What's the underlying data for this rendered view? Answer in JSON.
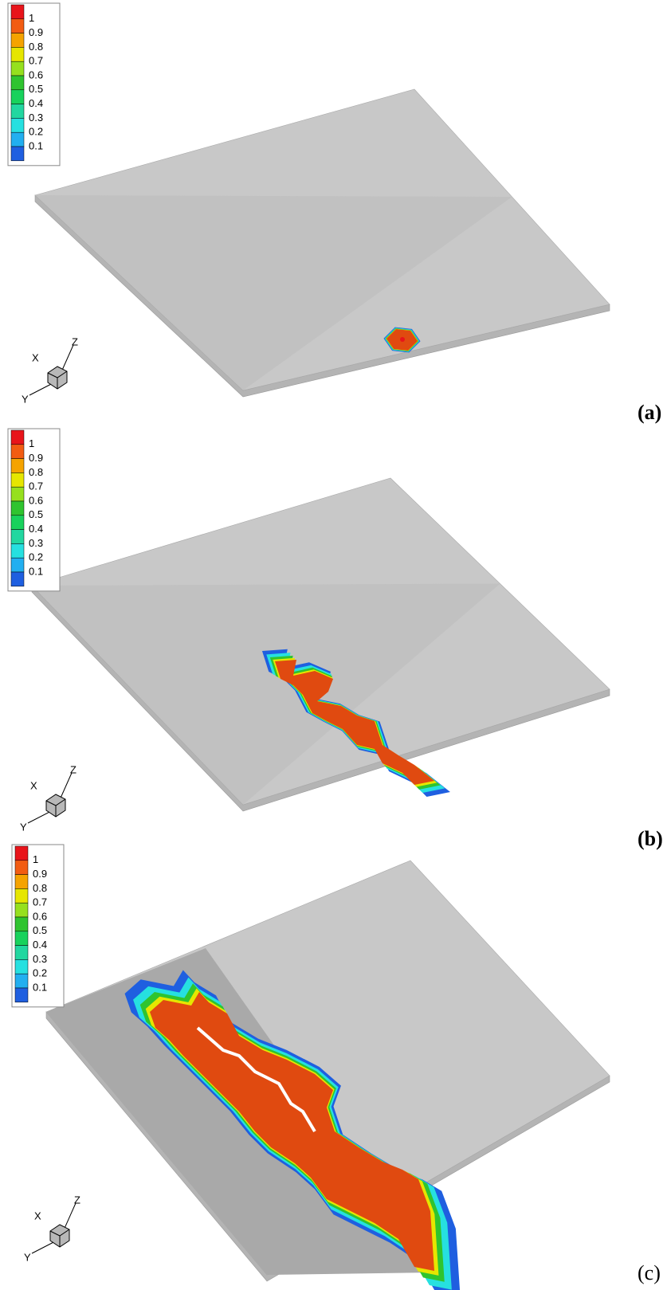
{
  "legend_colors": [
    "#e8141a",
    "#f25c12",
    "#f5a300",
    "#e6e600",
    "#96e01e",
    "#2fc42f",
    "#18d25c",
    "#22d7a0",
    "#26e0e0",
    "#22aff0",
    "#1f5fe0"
  ],
  "panels": [
    {
      "label": "(a)",
      "legend": [
        "1",
        "0.9",
        "0.8",
        "0.7",
        "0.6",
        "0.5",
        "0.4",
        "0.3",
        "0.2",
        "0.1"
      ],
      "axes": {
        "x": "X",
        "y": "Y",
        "z": "Z"
      }
    },
    {
      "label": "(b)",
      "legend": [
        "1",
        "0.9",
        "0.8",
        "0.7",
        "0.6",
        "0.5",
        "0.4",
        "0.3",
        "0.2",
        "0.1"
      ],
      "axes": {
        "x": "X",
        "y": "Y",
        "z": "Z"
      }
    },
    {
      "label": "(c)",
      "legend": [
        "1",
        "0.9",
        "0.8",
        "0.7",
        "0.6",
        "0.5",
        "0.4",
        "0.3",
        "0.2",
        "0.1"
      ],
      "axes": {
        "x": "X",
        "y": "Y",
        "z": "Z"
      }
    }
  ]
}
